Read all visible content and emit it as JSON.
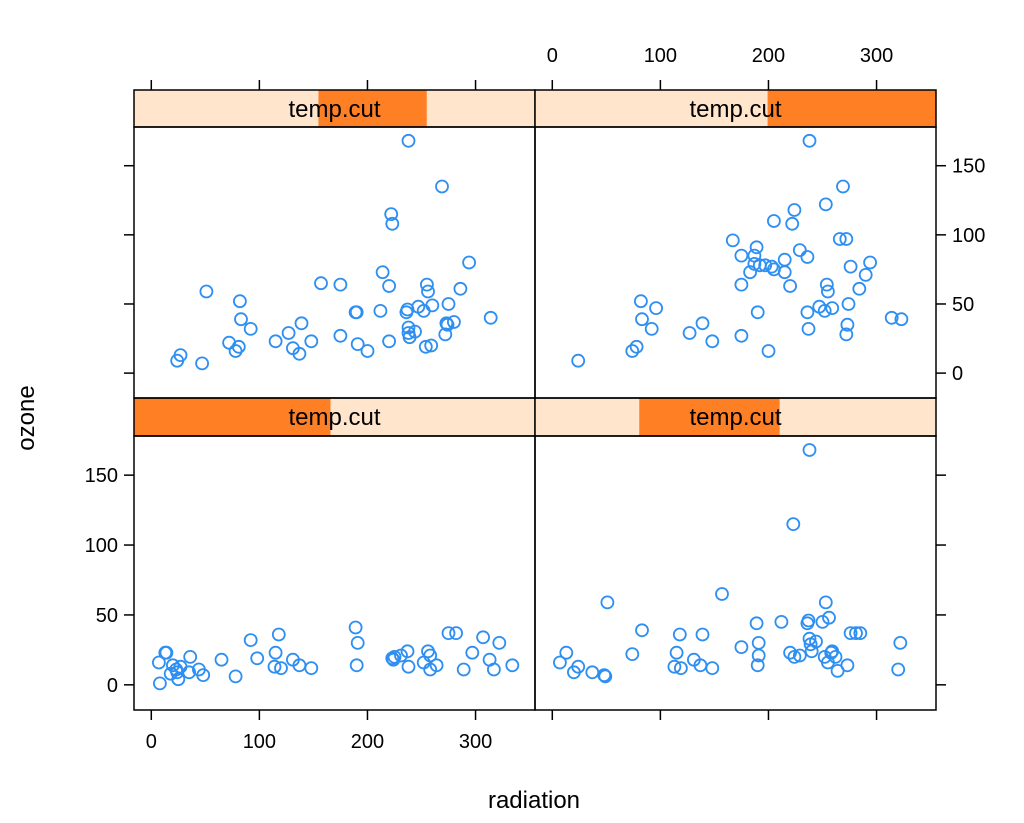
{
  "chart_data": {
    "type": "scatter",
    "layout": "lattice-2x2",
    "xlabel": "radiation",
    "ylabel": "ozone",
    "xlim": [
      -16,
      355
    ],
    "ylim": [
      -18,
      178
    ],
    "xticks": [
      0,
      100,
      200,
      300
    ],
    "yticks": [
      0,
      50,
      100,
      150
    ],
    "colors": {
      "point": "#2e8ff2",
      "strip_bg": "#ffe5cc",
      "strip_range": "#ff7f24",
      "frame": "#000000"
    },
    "panels": [
      {
        "position": "bottom-left",
        "strip_label": "temp.cut",
        "strip_range": [
          0,
          0.49
        ],
        "points": [
          [
            8,
            1
          ],
          [
            7,
            16
          ],
          [
            13,
            23
          ],
          [
            14,
            23
          ],
          [
            18,
            8
          ],
          [
            20,
            14
          ],
          [
            23,
            11
          ],
          [
            24,
            9
          ],
          [
            25,
            4
          ],
          [
            27,
            13
          ],
          [
            36,
            20
          ],
          [
            35,
            9
          ],
          [
            44,
            11
          ],
          [
            48,
            7
          ],
          [
            65,
            18
          ],
          [
            78,
            6
          ],
          [
            92,
            32
          ],
          [
            98,
            19
          ],
          [
            114,
            13
          ],
          [
            115,
            23
          ],
          [
            118,
            36
          ],
          [
            120,
            12
          ],
          [
            131,
            18
          ],
          [
            137,
            14
          ],
          [
            148,
            12
          ],
          [
            189,
            41
          ],
          [
            191,
            30
          ],
          [
            190,
            14
          ],
          [
            223,
            19
          ],
          [
            224,
            18
          ],
          [
            225,
            20
          ],
          [
            231,
            21
          ],
          [
            237,
            24
          ],
          [
            238,
            13
          ],
          [
            252,
            16
          ],
          [
            256,
            24
          ],
          [
            258,
            11
          ],
          [
            258,
            21
          ],
          [
            264,
            14
          ],
          [
            275,
            37
          ],
          [
            282,
            37
          ],
          [
            289,
            11
          ],
          [
            297,
            23
          ],
          [
            307,
            34
          ],
          [
            313,
            18
          ],
          [
            317,
            11
          ],
          [
            322,
            30
          ],
          [
            334,
            14
          ]
        ]
      },
      {
        "position": "bottom-right",
        "strip_label": "temp.cut",
        "strip_range": [
          0.26,
          0.61
        ],
        "points": [
          [
            7,
            16
          ],
          [
            13,
            23
          ],
          [
            20,
            9
          ],
          [
            24,
            13
          ],
          [
            37,
            9
          ],
          [
            48,
            7
          ],
          [
            49,
            6
          ],
          [
            51,
            59
          ],
          [
            74,
            22
          ],
          [
            83,
            39
          ],
          [
            113,
            13
          ],
          [
            115,
            23
          ],
          [
            118,
            36
          ],
          [
            119,
            12
          ],
          [
            131,
            18
          ],
          [
            137,
            14
          ],
          [
            139,
            36
          ],
          [
            148,
            12
          ],
          [
            157,
            65
          ],
          [
            175,
            27
          ],
          [
            189,
            44
          ],
          [
            190,
            14
          ],
          [
            191,
            30
          ],
          [
            191,
            21
          ],
          [
            212,
            45
          ],
          [
            220,
            23
          ],
          [
            223,
            115
          ],
          [
            224,
            20
          ],
          [
            229,
            21
          ],
          [
            236,
            44
          ],
          [
            237,
            46
          ],
          [
            238,
            168
          ],
          [
            238,
            33
          ],
          [
            239,
            29
          ],
          [
            240,
            24
          ],
          [
            244,
            31
          ],
          [
            250,
            45
          ],
          [
            252,
            20
          ],
          [
            253,
            59
          ],
          [
            255,
            16
          ],
          [
            256,
            48
          ],
          [
            258,
            23
          ],
          [
            259,
            24
          ],
          [
            262,
            20
          ],
          [
            264,
            10
          ],
          [
            273,
            14
          ],
          [
            276,
            37
          ],
          [
            281,
            37
          ],
          [
            285,
            37
          ],
          [
            320,
            11
          ],
          [
            322,
            30
          ]
        ]
      },
      {
        "position": "top-left",
        "strip_label": "temp.cut",
        "strip_range": [
          0.46,
          0.73
        ],
        "points": [
          [
            24,
            9
          ],
          [
            27,
            13
          ],
          [
            47,
            7
          ],
          [
            51,
            59
          ],
          [
            72,
            22
          ],
          [
            78,
            16
          ],
          [
            81,
            19
          ],
          [
            82,
            52
          ],
          [
            83,
            39
          ],
          [
            92,
            32
          ],
          [
            115,
            23
          ],
          [
            127,
            29
          ],
          [
            131,
            18
          ],
          [
            137,
            14
          ],
          [
            139,
            36
          ],
          [
            148,
            23
          ],
          [
            157,
            65
          ],
          [
            175,
            64
          ],
          [
            175,
            27
          ],
          [
            189,
            44
          ],
          [
            190,
            44
          ],
          [
            191,
            21
          ],
          [
            200,
            16
          ],
          [
            212,
            45
          ],
          [
            214,
            73
          ],
          [
            220,
            23
          ],
          [
            220,
            63
          ],
          [
            222,
            115
          ],
          [
            223,
            108
          ],
          [
            236,
            44
          ],
          [
            237,
            46
          ],
          [
            238,
            168
          ],
          [
            238,
            33
          ],
          [
            238,
            29
          ],
          [
            239,
            26
          ],
          [
            244,
            30
          ],
          [
            247,
            48
          ],
          [
            252,
            45
          ],
          [
            254,
            19
          ],
          [
            255,
            64
          ],
          [
            256,
            59
          ],
          [
            259,
            20
          ],
          [
            260,
            49
          ],
          [
            269,
            135
          ],
          [
            272,
            28
          ],
          [
            273,
            36
          ],
          [
            274,
            35
          ],
          [
            275,
            50
          ],
          [
            280,
            37
          ],
          [
            286,
            61
          ],
          [
            294,
            80
          ],
          [
            314,
            40
          ]
        ]
      },
      {
        "position": "top-right",
        "strip_label": "temp.cut",
        "strip_range": [
          0.58,
          1.0
        ],
        "points": [
          [
            24,
            9
          ],
          [
            74,
            16
          ],
          [
            78,
            19
          ],
          [
            82,
            52
          ],
          [
            83,
            39
          ],
          [
            92,
            32
          ],
          [
            96,
            47
          ],
          [
            127,
            29
          ],
          [
            139,
            36
          ],
          [
            148,
            23
          ],
          [
            167,
            96
          ],
          [
            175,
            85
          ],
          [
            175,
            64
          ],
          [
            175,
            27
          ],
          [
            183,
            73
          ],
          [
            187,
            85
          ],
          [
            187,
            79
          ],
          [
            189,
            91
          ],
          [
            190,
            44
          ],
          [
            192,
            78
          ],
          [
            197,
            78
          ],
          [
            200,
            16
          ],
          [
            203,
            77
          ],
          [
            205,
            75
          ],
          [
            205,
            110
          ],
          [
            215,
            82
          ],
          [
            215,
            73
          ],
          [
            220,
            63
          ],
          [
            222,
            108
          ],
          [
            224,
            118
          ],
          [
            229,
            89
          ],
          [
            236,
            44
          ],
          [
            236,
            84
          ],
          [
            237,
            32
          ],
          [
            238,
            168
          ],
          [
            247,
            48
          ],
          [
            252,
            45
          ],
          [
            253,
            122
          ],
          [
            254,
            64
          ],
          [
            255,
            59
          ],
          [
            259,
            47
          ],
          [
            266,
            97
          ],
          [
            269,
            135
          ],
          [
            272,
            28
          ],
          [
            272,
            97
          ],
          [
            273,
            35
          ],
          [
            274,
            50
          ],
          [
            276,
            77
          ],
          [
            284,
            61
          ],
          [
            290,
            71
          ],
          [
            294,
            80
          ],
          [
            314,
            40
          ],
          [
            323,
            39
          ]
        ]
      }
    ]
  }
}
